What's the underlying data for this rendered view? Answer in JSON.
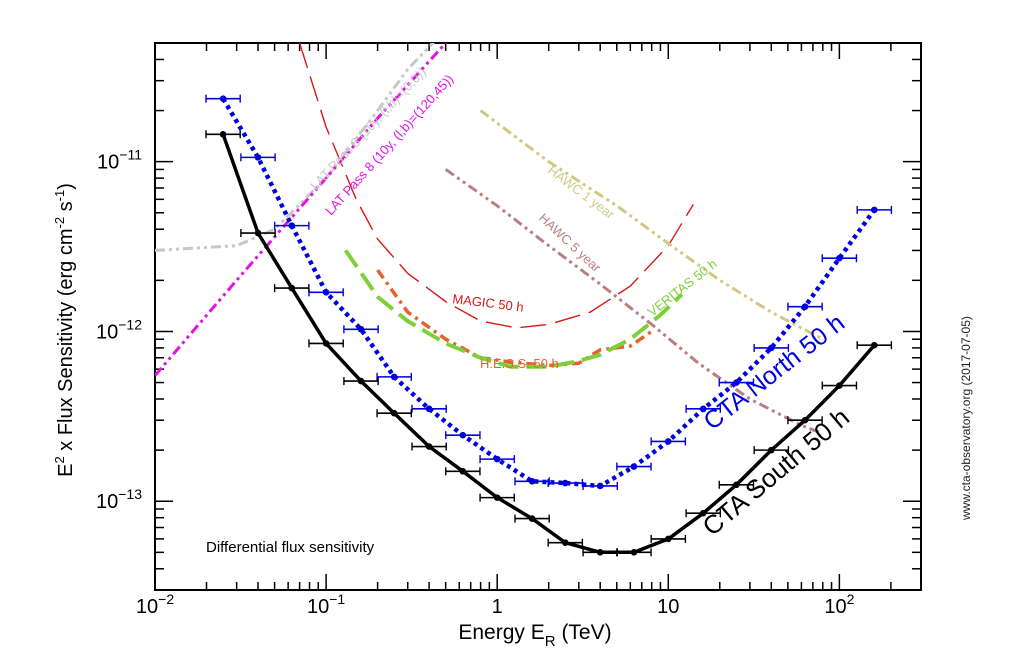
{
  "chart_data": {
    "type": "line",
    "title": "",
    "xlabel": {
      "main": "Energy E",
      "sub": "R",
      "unit": " (TeV)"
    },
    "ylabel": {
      "a": "E",
      "a_sup": "2",
      "b": " x Flux Sensitivity (erg cm",
      "b_sup": "-2",
      "c": " s",
      "c_sup": "-1",
      "d": ")"
    },
    "x_scale": "log",
    "y_scale": "log",
    "xlim": [
      0.01,
      300
    ],
    "ylim": [
      3e-14,
      5e-11
    ],
    "x_ticks": [
      {
        "value": 0.01,
        "base": "10",
        "exp": "−2"
      },
      {
        "value": 0.1,
        "base": "10",
        "exp": "−1"
      },
      {
        "value": 1,
        "base": "1",
        "exp": ""
      },
      {
        "value": 10,
        "base": "10",
        "exp": ""
      },
      {
        "value": 100,
        "base": "10",
        "exp": "2"
      }
    ],
    "y_ticks": [
      {
        "value": 1e-13,
        "base": "10",
        "exp": "−13"
      },
      {
        "value": 1e-12,
        "base": "10",
        "exp": "−12"
      },
      {
        "value": 1e-11,
        "base": "10",
        "exp": "−11"
      }
    ],
    "annotation_bottom_left": "Differential flux sensitivity",
    "credit": "www.cta-observatory.org (2017-07-05)",
    "series": [
      {
        "name": "CTA South 50 h",
        "color": "#000000",
        "style": "solid",
        "x": [
          0.025,
          0.04,
          0.063,
          0.1,
          0.16,
          0.25,
          0.4,
          0.63,
          1.0,
          1.6,
          2.5,
          4.0,
          6.3,
          10,
          16,
          25,
          40,
          63,
          100,
          160
        ],
        "y": [
          1.45e-11,
          3.8e-12,
          1.8e-12,
          8.5e-13,
          5.1e-13,
          3.3e-13,
          2.1e-13,
          1.5e-13,
          1.05e-13,
          7.9e-14,
          5.7e-14,
          5e-14,
          5e-14,
          6e-14,
          8.5e-14,
          1.25e-13,
          2e-13,
          3e-13,
          4.8e-13,
          8.3e-13
        ]
      },
      {
        "name": "CTA North 50 h",
        "color": "#0000e0",
        "style": "dotted",
        "x": [
          0.025,
          0.04,
          0.063,
          0.1,
          0.16,
          0.25,
          0.4,
          0.63,
          1.0,
          1.6,
          2.5,
          4.0,
          6.3,
          10,
          16,
          25,
          40,
          63,
          100,
          160
        ],
        "y": [
          2.35e-11,
          1.06e-11,
          4.2e-12,
          1.7e-12,
          1.03e-12,
          5.4e-13,
          3.5e-13,
          2.45e-13,
          1.77e-13,
          1.31e-13,
          1.28e-13,
          1.23e-13,
          1.6e-13,
          2.25e-13,
          3.5e-13,
          5e-13,
          8e-13,
          1.4e-12,
          2.7e-12,
          5.2e-12
        ]
      },
      {
        "name": "MAGIC 50 h",
        "color": "#d81818",
        "style": "longdash",
        "x": [
          0.07,
          0.1,
          0.15,
          0.2,
          0.3,
          0.5,
          0.8,
          1.3,
          2,
          3.5,
          6,
          10,
          14
        ],
        "y": [
          5e-11,
          1.6e-11,
          6e-12,
          3.5e-12,
          2.2e-12,
          1.5e-12,
          1.15e-12,
          1.05e-12,
          1.1e-12,
          1.3e-12,
          1.85e-12,
          3.2e-12,
          5.6e-12
        ]
      },
      {
        "name": "H.E.S.S. 50 h",
        "color": "#e8602c",
        "style": "dashdot",
        "x": [
          0.2,
          0.3,
          0.5,
          0.8,
          1.2,
          2,
          3,
          4,
          6,
          8
        ],
        "y": [
          2.3e-12,
          1.3e-12,
          9e-13,
          7e-13,
          6.6e-13,
          6.3e-13,
          6.5e-13,
          7.8e-13,
          8.2e-13,
          1e-12
        ]
      },
      {
        "name": "VERITAS 50 h",
        "color": "#7dd03a",
        "style": "dashed",
        "x": [
          0.13,
          0.2,
          0.3,
          0.5,
          0.8,
          1.2,
          2,
          3,
          4,
          6,
          9,
          12
        ],
        "y": [
          3e-12,
          1.6e-12,
          1.15e-12,
          8.5e-13,
          7e-13,
          6.2e-13,
          6.2e-13,
          6.7e-13,
          7.3e-13,
          9e-13,
          1.25e-12,
          1.65e-12
        ]
      },
      {
        "name": "LAT Pass 8 (10y, (l,b)=(0,0))",
        "color": "#c8c8c8",
        "style": "dashdotdot",
        "x": [
          0.01,
          0.03,
          0.05,
          0.1,
          0.2,
          0.3,
          0.5
        ],
        "y": [
          3e-12,
          3.2e-12,
          4e-12,
          8e-12,
          2e-11,
          3.5e-11,
          6e-11
        ]
      },
      {
        "name": "LAT Pass 8 (10y, (l,b)=(120,45))",
        "color": "#e014e0",
        "style": "dashdotdot",
        "x": [
          0.01,
          0.03,
          0.1,
          0.2,
          0.5
        ],
        "y": [
          5.5e-13,
          2e-12,
          8e-12,
          1.8e-11,
          5e-11
        ]
      },
      {
        "name": "HAWC 1 year",
        "color": "#d2c882",
        "style": "dashdotdot",
        "x": [
          0.8,
          2,
          5,
          10,
          20,
          40,
          80
        ],
        "y": [
          2e-11,
          1e-11,
          5.5e-12,
          3.3e-12,
          2e-12,
          1.3e-12,
          9e-13
        ]
      },
      {
        "name": "HAWC 5 year",
        "color": "#b98080",
        "style": "dashdotdot",
        "x": [
          0.5,
          1,
          2,
          4,
          8,
          15,
          30,
          60,
          80
        ],
        "y": [
          9e-12,
          5.5e-12,
          3.2e-12,
          1.9e-12,
          1.1e-12,
          6.5e-13,
          4e-13,
          2.8e-13,
          2.5e-13
        ]
      }
    ],
    "curve_labels": [
      {
        "text": "CTA South 50 h",
        "color": "#000000"
      },
      {
        "text": "CTA North 50 h",
        "color": "#0000e0"
      },
      {
        "text": "MAGIC 50 h",
        "color": "#d81818"
      },
      {
        "text": "H.E.S.S. 50 h",
        "color": "#e8602c"
      },
      {
        "text": "VERITAS 50 h",
        "color": "#7dd03a"
      },
      {
        "text": "LAT Pass 8 (10y, (l,b)=(0,0))",
        "color": "#c8c8c8"
      },
      {
        "text": "LAT Pass 8 (10y, (l,b)=(120,45))",
        "color": "#e014e0"
      },
      {
        "text": "HAWC 1 year",
        "color": "#d2c882"
      },
      {
        "text": "HAWC 5 year",
        "color": "#b98080"
      }
    ]
  }
}
